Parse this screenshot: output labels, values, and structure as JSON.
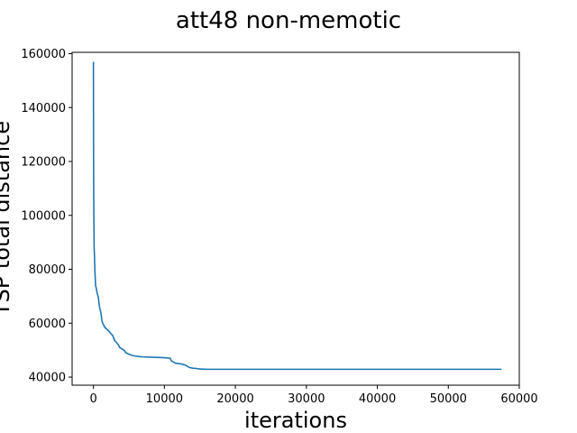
{
  "chart_data": {
    "type": "line",
    "title": "att48 non-memotic",
    "xlabel": "iterations",
    "ylabel": "TSP total distance",
    "xlim": [
      -3000,
      60000
    ],
    "ylim": [
      37000,
      160500
    ],
    "x_ticks": [
      0,
      10000,
      20000,
      30000,
      40000,
      50000,
      60000
    ],
    "x_tick_labels": [
      "0",
      "10000",
      "20000",
      "30000",
      "40000",
      "50000",
      "60000"
    ],
    "y_ticks": [
      40000,
      60000,
      80000,
      100000,
      120000,
      140000,
      160000
    ],
    "y_tick_labels": [
      "40000",
      "60000",
      "80000",
      "100000",
      "120000",
      "140000",
      "160000"
    ],
    "grid": false,
    "line_color": "#1f77b4",
    "series": [
      {
        "x": [
          0,
          10,
          20,
          40,
          60,
          100,
          150,
          200,
          250,
          300,
          400,
          500,
          600,
          700,
          800,
          900,
          1000,
          1100,
          1200,
          1300,
          1400,
          1500,
          1600,
          1800,
          2000,
          2200,
          2500,
          2700,
          3000,
          3200,
          3500,
          3700,
          4000,
          4300,
          4600,
          5000,
          5500,
          6000,
          6500,
          7000,
          8000,
          9000,
          10000,
          10500,
          10800,
          11000,
          11500,
          12000,
          12500,
          13000,
          13500,
          14000,
          14500,
          15000,
          16000,
          20000,
          30000,
          40000,
          50000,
          57500
        ],
        "values": [
          157000,
          140000,
          125000,
          110000,
          100000,
          88000,
          85000,
          80000,
          77000,
          74000,
          73000,
          71500,
          70500,
          69500,
          67000,
          65500,
          64500,
          63000,
          61000,
          60000,
          59500,
          59000,
          58500,
          58000,
          57500,
          57000,
          56000,
          55500,
          53500,
          53000,
          52000,
          51000,
          50500,
          50000,
          49000,
          48500,
          48000,
          47800,
          47600,
          47500,
          47400,
          47300,
          47200,
          47100,
          47000,
          46000,
          45200,
          45000,
          44800,
          44400,
          43600,
          43300,
          43200,
          43000,
          42900,
          42900,
          42900,
          42900,
          42900,
          42900
        ]
      }
    ]
  }
}
